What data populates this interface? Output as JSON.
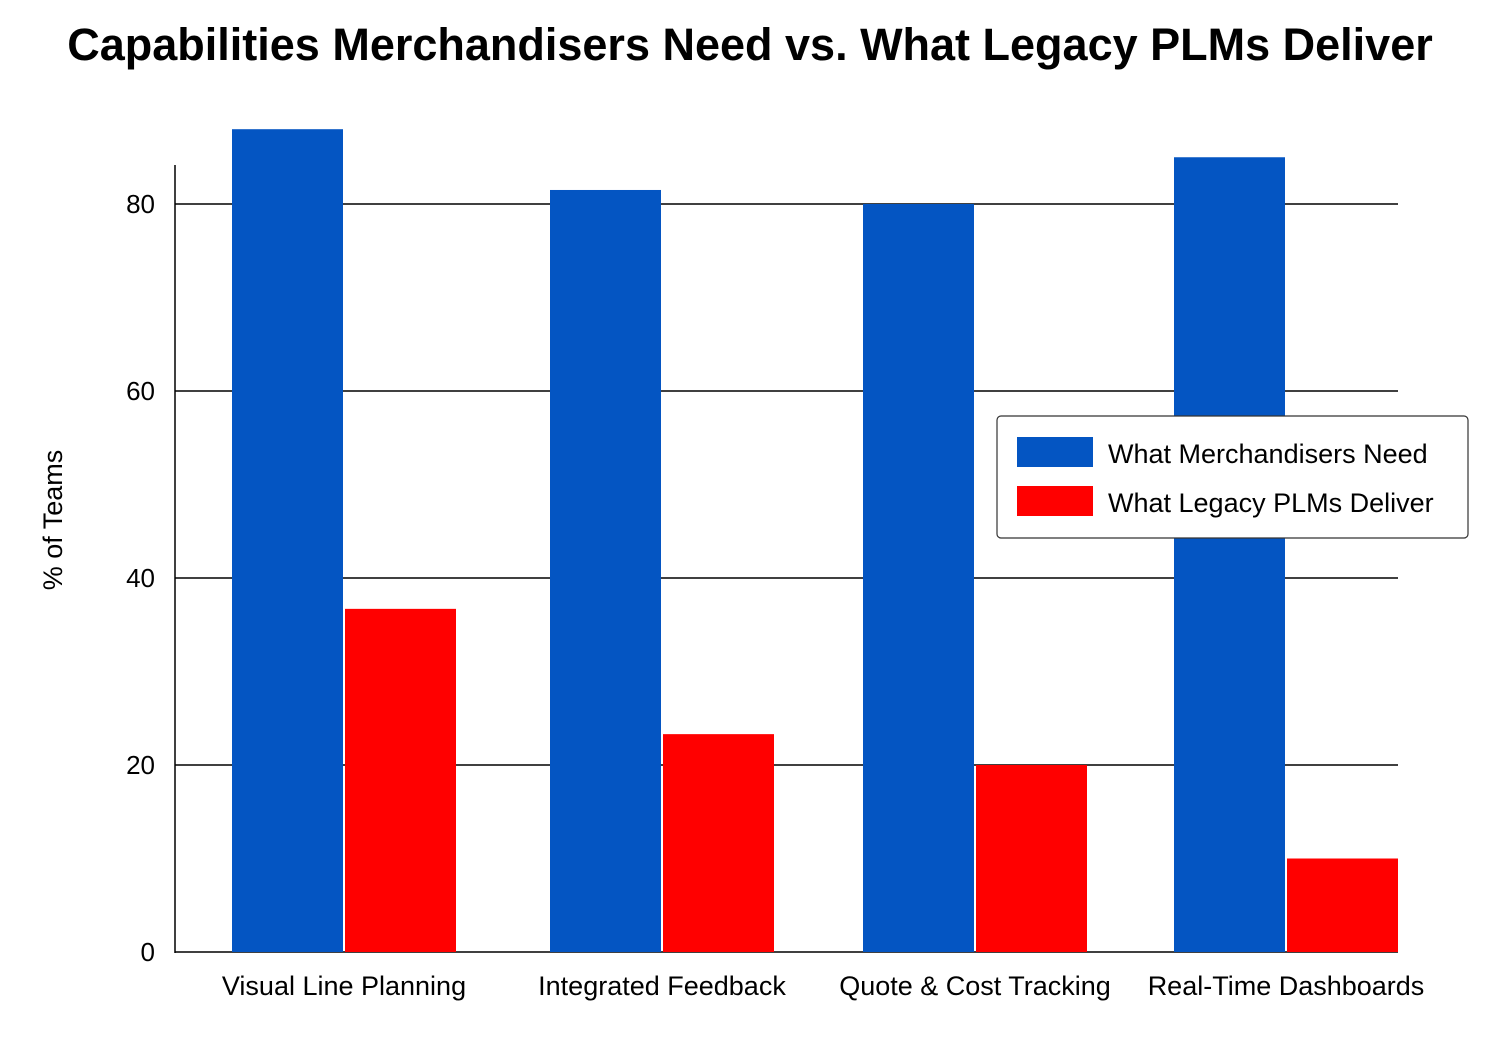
{
  "chart_data": {
    "type": "bar",
    "title": "Capabilities Merchandisers Need vs. What Legacy PLMs Deliver",
    "xlabel": "",
    "ylabel": "% of Teams",
    "ylim": [
      0,
      84.2
    ],
    "yticks": [
      0,
      20,
      40,
      60,
      80
    ],
    "grid": true,
    "legend_position": "center-right",
    "categories": [
      "Visual Line Planning",
      "Integrated Feedback",
      "Quote & Cost Tracking",
      "Real-Time Dashboards"
    ],
    "series": [
      {
        "name": "What Merchandisers Need",
        "color": "#0455C2",
        "values": [
          88,
          81.5,
          80,
          85
        ]
      },
      {
        "name": "What Legacy PLMs Deliver",
        "color": "#FF0000",
        "values": [
          36.7,
          23.3,
          20,
          10
        ]
      }
    ]
  }
}
